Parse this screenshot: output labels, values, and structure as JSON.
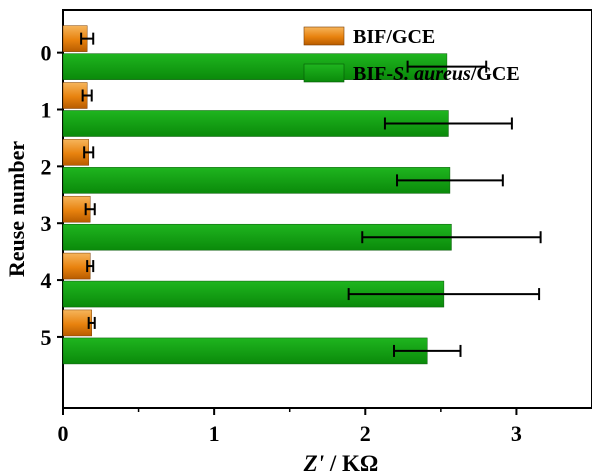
{
  "chart_data": {
    "type": "bar",
    "orientation": "horizontal",
    "categories": [
      "0",
      "1",
      "2",
      "3",
      "4",
      "5"
    ],
    "ylabel": "Reuse number",
    "xlabel": {
      "prefix": "Z'",
      "rest": " / KΩ"
    },
    "xlim": [
      0,
      3.5
    ],
    "xticks": [
      0,
      1,
      2,
      3
    ],
    "grid": false,
    "legend_position": "top-right",
    "series": [
      {
        "name": "BIF/GCE",
        "color": "#e8820e",
        "values": [
          0.16,
          0.16,
          0.17,
          0.18,
          0.18,
          0.19
        ],
        "errors": [
          0.04,
          0.03,
          0.03,
          0.03,
          0.02,
          0.02
        ]
      },
      {
        "name": "BIF-S. aureus/GCE",
        "name_parts": [
          "BIF-",
          "S. aureus",
          "/GCE"
        ],
        "color": "#0f9a0f",
        "values": [
          2.54,
          2.55,
          2.56,
          2.57,
          2.52,
          2.41
        ],
        "errors": [
          0.26,
          0.42,
          0.35,
          0.59,
          0.63,
          0.22
        ]
      }
    ]
  }
}
